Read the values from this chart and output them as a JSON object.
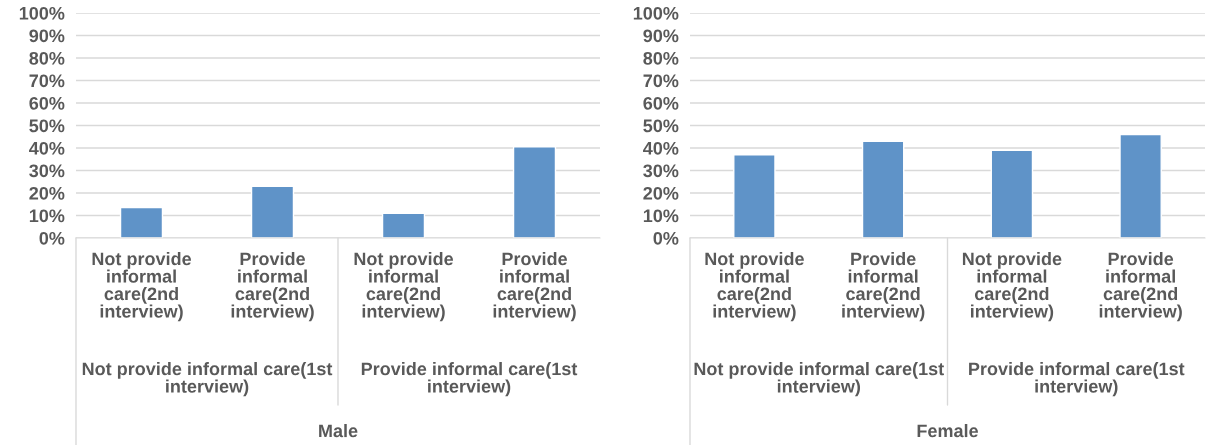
{
  "chart_data": [
    {
      "type": "bar",
      "xlabel": "Male",
      "categories": [
        "Not provide informal care(2nd interview)",
        "Provide informal care(2nd interview)",
        "Not provide informal care(2nd interview)",
        "Provide informal care(2nd interview)"
      ],
      "values": [
        13.5,
        23,
        11,
        40.5
      ],
      "color": "#5f93c8",
      "ylim": [
        0,
        100
      ],
      "yticks": [
        {
          "value": 0,
          "label": "0%"
        },
        {
          "value": 10,
          "label": "10%"
        },
        {
          "value": 20,
          "label": "20%"
        },
        {
          "value": 30,
          "label": "30%"
        },
        {
          "value": 40,
          "label": "40%"
        },
        {
          "value": 50,
          "label": "50%"
        },
        {
          "value": 60,
          "label": "60%"
        },
        {
          "value": 70,
          "label": "70%"
        },
        {
          "value": 80,
          "label": "80%"
        },
        {
          "value": 90,
          "label": "90%"
        },
        {
          "value": 100,
          "label": "100%"
        }
      ],
      "grid": "y",
      "annotations": [
        "Not provide informal care(1st interview)",
        "Provide informal care(1st interview)"
      ]
    },
    {
      "type": "bar",
      "xlabel": "Female",
      "categories": [
        "Not provide informal care(2nd interview)",
        "Provide informal care(2nd interview)",
        "Not provide informal care(2nd interview)",
        "Provide informal care(2nd interview)"
      ],
      "values": [
        37,
        43,
        39,
        46
      ],
      "color": "#5f93c8",
      "ylim": [
        0,
        100
      ],
      "yticks": [
        {
          "value": 0,
          "label": "0%"
        },
        {
          "value": 10,
          "label": "10%"
        },
        {
          "value": 20,
          "label": "20%"
        },
        {
          "value": 30,
          "label": "30%"
        },
        {
          "value": 40,
          "label": "40%"
        },
        {
          "value": 50,
          "label": "50%"
        },
        {
          "value": 60,
          "label": "60%"
        },
        {
          "value": 70,
          "label": "70%"
        },
        {
          "value": 80,
          "label": "80%"
        },
        {
          "value": 90,
          "label": "90%"
        },
        {
          "value": 100,
          "label": "100%"
        }
      ],
      "grid": "y",
      "annotations": [
        "Not provide informal care(1st interview)",
        "Provide informal care(1st interview)"
      ]
    }
  ]
}
